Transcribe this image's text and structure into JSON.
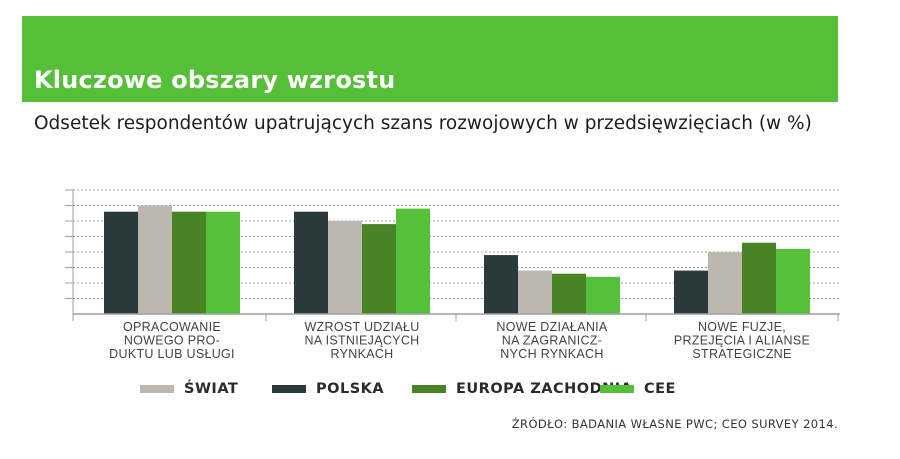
{
  "header": {
    "title": "Kluczowe obszary wzrostu",
    "subtitle": "Odsetek respondentów upatrujących szans rozwojowych w przedsięwzięciach (w %)"
  },
  "source": "ŹRÓDŁO: BADANIA WŁASNE PWC; CEO SURVEY 2014.",
  "chart_data": {
    "type": "bar",
    "categories": [
      [
        "OPRACOWANIE",
        "NOWEGO PRO-",
        "DUKTU LUB USŁUGI"
      ],
      [
        "WZROST UDZIAŁU",
        "NA ISTNIEJĄCYCH",
        "RYNKACH"
      ],
      [
        "NOWE DZIAŁANIA",
        "NA ZAGRANICZ-",
        "NYCH RYNKACH"
      ],
      [
        "NOWE FUZJE,",
        "PRZEJĘCIA I ALIANSE",
        "STRATEGICZNE"
      ]
    ],
    "series": [
      {
        "name": "POLSKA",
        "color": "#2a3a3c",
        "values": [
          66,
          66,
          38,
          28
        ]
      },
      {
        "name": "ŚWIAT",
        "color": "#bdb7b0",
        "values": [
          70,
          60,
          28,
          40
        ]
      },
      {
        "name": "EUROPA ZACHODNIA",
        "color": "#4a8226",
        "values": [
          66,
          58,
          26,
          46
        ]
      },
      {
        "name": "CEE",
        "color": "#55c13a",
        "values": [
          66,
          68,
          24,
          42
        ]
      }
    ],
    "ylim": [
      0,
      80
    ],
    "y_tick_step": 10,
    "grid": true,
    "legend": {
      "placement": "bottom",
      "order": [
        "ŚWIAT",
        "POLSKA",
        "EUROPA ZACHODNIA",
        "CEE"
      ]
    }
  }
}
